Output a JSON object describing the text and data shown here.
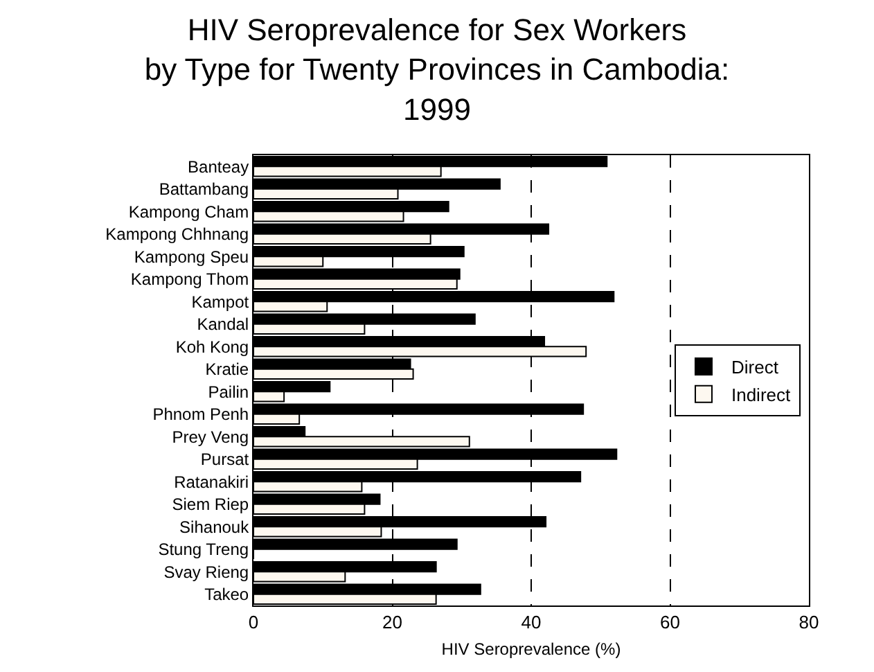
{
  "chart_data": {
    "type": "bar",
    "orientation": "horizontal",
    "title": "HIV Seroprevalence for Sex Workers by Type for Twenty Provinces in Cambodia: 1999",
    "xlabel": "HIV Seroprevalence (%)",
    "categories": [
      "Banteay",
      "Battambang",
      "Kampong Cham",
      "Kampong Chhnang",
      "Kampong Speu",
      "Kampong Thom",
      "Kampot",
      "Kandal",
      "Koh Kong",
      "Kratie",
      "Pailin",
      "Phnom Penh",
      "Prey Veng",
      "Pursat",
      "Ratanakiri",
      "Siem Riep",
      "Sihanouk",
      "Stung Treng",
      "Svay Rieng",
      "Takeo"
    ],
    "series": [
      {
        "name": "Direct",
        "color": "#000000",
        "values": [
          50.9,
          35.5,
          28.1,
          42.5,
          30.3,
          29.7,
          51.9,
          31.9,
          41.9,
          22.6,
          11,
          47.5,
          7.4,
          52.3,
          47.1,
          18.2,
          42.1,
          29.3,
          26.3,
          32.7
        ]
      },
      {
        "name": "Indirect",
        "color": "#fdf8f0",
        "values": [
          27,
          20.8,
          21.6,
          25.5,
          10,
          29.3,
          10.6,
          16,
          47.9,
          23,
          4.4,
          6.6,
          31.1,
          23.6,
          15.6,
          16,
          18.4,
          0,
          13.2,
          26.3
        ]
      }
    ],
    "xlim": [
      0,
      80
    ],
    "xticks": [
      0,
      20,
      40,
      60,
      80
    ],
    "grid": "x",
    "legend": "right"
  }
}
